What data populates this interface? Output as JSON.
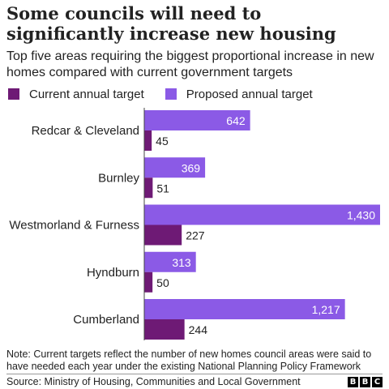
{
  "chart_data": {
    "type": "bar",
    "title": "Some councils will need to significantly increase new housing",
    "subtitle": "Top five areas requiring the biggest proportional increase in new homes compared with current government targets",
    "categories": [
      "Redcar & Cleveland",
      "Burnley",
      "Westmorland & Furness",
      "Hyndburn",
      "Cumberland"
    ],
    "series": [
      {
        "name": "Current annual target",
        "color": "#6e1a75",
        "values": [
          45,
          51,
          227,
          50,
          244
        ],
        "labels": [
          "45",
          "51",
          "227",
          "50",
          "244"
        ]
      },
      {
        "name": "Proposed annual target",
        "color": "#8b5ae6",
        "values": [
          642,
          369,
          1430,
          313,
          1217
        ],
        "labels": [
          "642",
          "369",
          "1,430",
          "313",
          "1,217"
        ]
      }
    ],
    "orientation": "horizontal",
    "xlim": [
      0,
      1430
    ],
    "grid": false,
    "legend": "top-left",
    "note": "Note: Current targets reflect the number of new homes council areas were said to have needed each year under the existing National Planning Policy Framework",
    "source": "Source: Ministry of Housing, Communities and Local Government"
  },
  "branding": {
    "letters": [
      "B",
      "B",
      "C"
    ]
  }
}
